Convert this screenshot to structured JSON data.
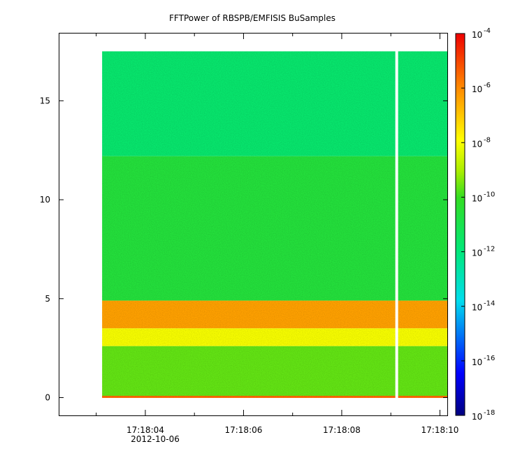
{
  "chart_data": {
    "type": "heatmap",
    "title": "FFTPower of RBSPB/EMFISIS  BuSamples",
    "xlabel": "",
    "ylabel": "",
    "x_ticks": [
      {
        "label": "17:18:04",
        "value": 4
      },
      {
        "label": "17:18:06",
        "value": 6
      },
      {
        "label": "17:18:08",
        "value": 8
      },
      {
        "label": "17:18:10",
        "value": 10
      }
    ],
    "x_date_label": "2012-10-06",
    "xlim": [
      2.25,
      10.15
    ],
    "data_x_range": [
      3.12,
      10.15
    ],
    "gap_x": 9.12,
    "y_ticks": [
      0,
      5,
      10,
      15
    ],
    "ylim": [
      -0.9,
      18.4
    ],
    "data_y_range": [
      0,
      17.5
    ],
    "colorbar": {
      "scale": "log",
      "range_exponents": [
        -18,
        -4
      ],
      "tick_base": "10",
      "tick_exponents": [
        "-4",
        "-6",
        "-8",
        "-10",
        "-12",
        "-14",
        "-16",
        "-18"
      ]
    },
    "bands": [
      {
        "y_range": [
          12.2,
          17.5
        ],
        "level_exponent": -11.7
      },
      {
        "y_range": [
          4.9,
          12.2
        ],
        "level_exponent": -10.6
      },
      {
        "y_range": [
          3.5,
          4.9
        ],
        "level_exponent": -6.4
      },
      {
        "y_range": [
          2.6,
          3.5
        ],
        "level_exponent": -8.0
      },
      {
        "y_range": [
          0.0,
          2.6
        ],
        "level_exponent": -9.6
      }
    ]
  }
}
